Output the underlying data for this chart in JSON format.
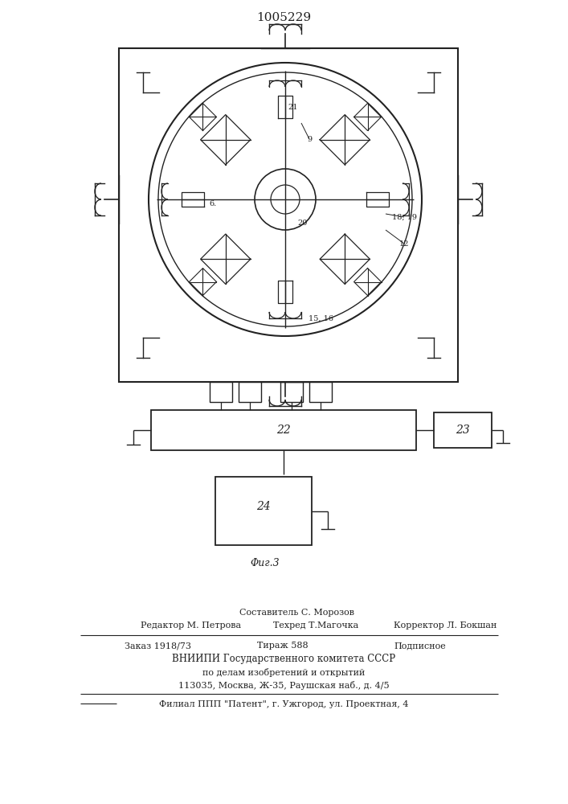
{
  "patent_number": "1005229",
  "fig_caption": "Φиг.3",
  "bg_color": "#ffffff",
  "line_color": "#222222",
  "footer_lines": [
    "Составитель С. Морозов",
    "Редактор М. Петрова",
    "Техред Т.Магочка",
    "Корректор Л. Бокшан",
    "Заказ 1918/73",
    "Тираж 588",
    "Подписное",
    "ВНИИПИ Государственного комитета СССР",
    "по делам изобретений и открытий",
    "113035, Москва, Ж-35, Раушская наб., д. 4/5",
    "Филиал ППП \"Патент\", г. Ужгород, ул. Проектная, 4"
  ]
}
